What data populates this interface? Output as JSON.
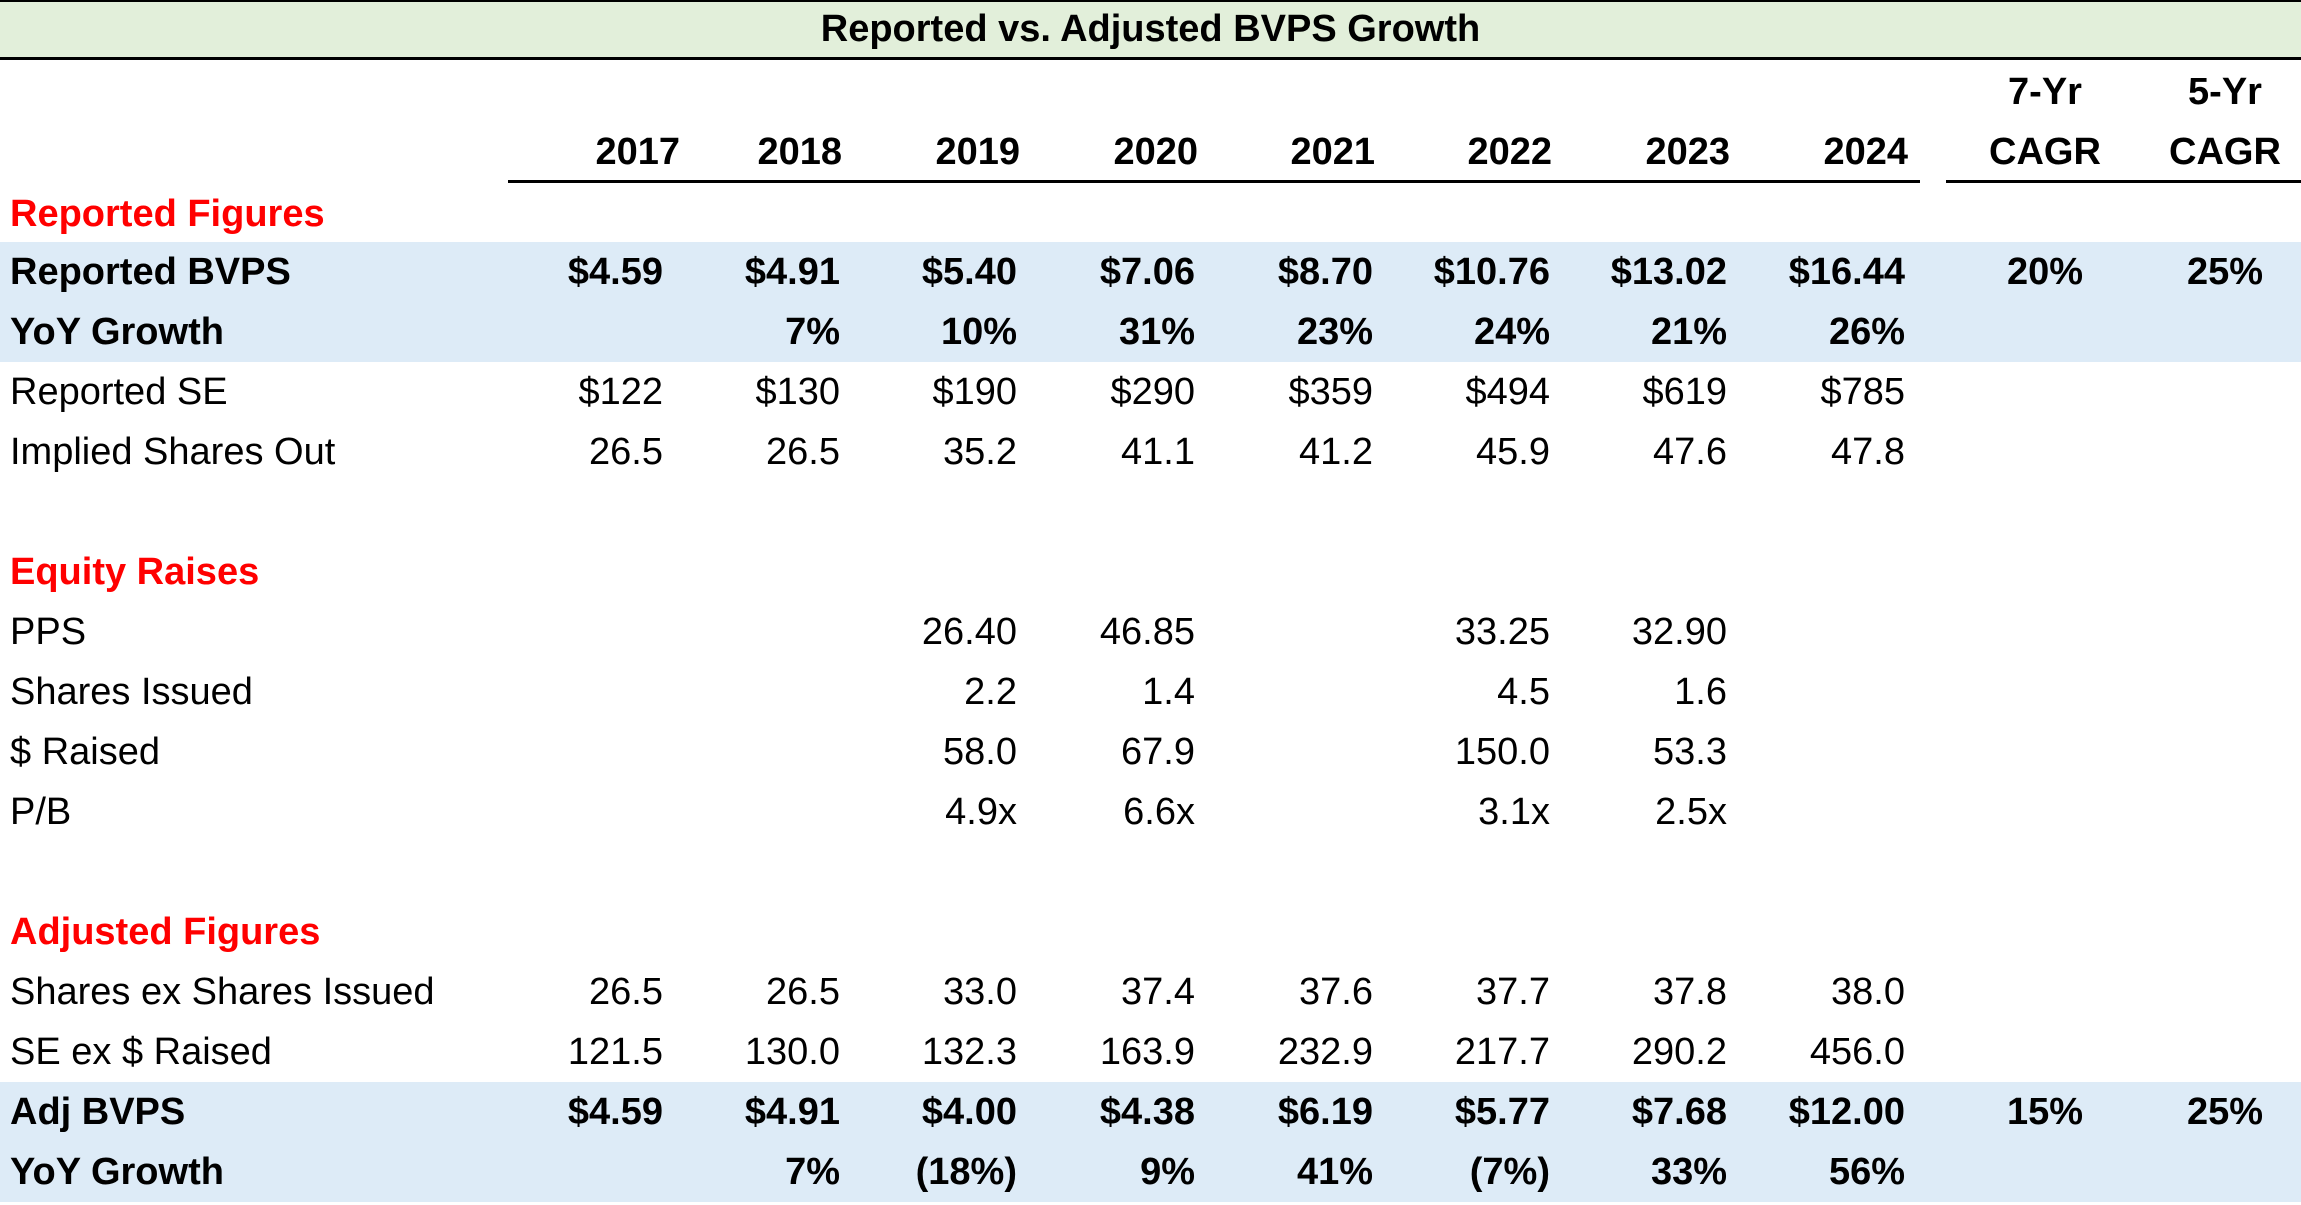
{
  "title": "Reported vs. Adjusted BVPS Growth",
  "headers": {
    "years": [
      "2017",
      "2018",
      "2019",
      "2020",
      "2021",
      "2022",
      "2023",
      "2024"
    ],
    "cagr7": [
      "7-Yr",
      "CAGR"
    ],
    "cagr5": [
      "5-Yr",
      "CAGR"
    ]
  },
  "sections": {
    "reported": "Reported Figures",
    "equity": "Equity Raises",
    "adjusted": "Adjusted Figures"
  },
  "rows": {
    "reported_bvps": {
      "label": "Reported BVPS",
      "values": [
        "$4.59",
        "$4.91",
        "$5.40",
        "$7.06",
        "$8.70",
        "$10.76",
        "$13.02",
        "$16.44"
      ],
      "cagr7": "20%",
      "cagr5": "25%"
    },
    "reported_yoy": {
      "label": "YoY Growth",
      "values": [
        "",
        "7%",
        "10%",
        "31%",
        "23%",
        "24%",
        "21%",
        "26%"
      ]
    },
    "reported_se": {
      "label": "Reported SE",
      "values": [
        "$122",
        "$130",
        "$190",
        "$290",
        "$359",
        "$494",
        "$619",
        "$785"
      ]
    },
    "implied_shares": {
      "label": "Implied Shares Out",
      "values": [
        "26.5",
        "26.5",
        "35.2",
        "41.1",
        "41.2",
        "45.9",
        "47.6",
        "47.8"
      ]
    },
    "pps": {
      "label": "PPS",
      "values": [
        "",
        "",
        "26.40",
        "46.85",
        "",
        "33.25",
        "32.90",
        ""
      ]
    },
    "shares_issued": {
      "label": "Shares Issued",
      "values": [
        "",
        "",
        "2.2",
        "1.4",
        "",
        "4.5",
        "1.6",
        ""
      ]
    },
    "raised": {
      "label": "$ Raised",
      "values": [
        "",
        "",
        "58.0",
        "67.9",
        "",
        "150.0",
        "53.3",
        ""
      ]
    },
    "pb": {
      "label": "P/B",
      "values": [
        "",
        "",
        "4.9x",
        "6.6x",
        "",
        "3.1x",
        "2.5x",
        ""
      ]
    },
    "shares_ex": {
      "label": "Shares ex Shares Issued",
      "values": [
        "26.5",
        "26.5",
        "33.0",
        "37.4",
        "37.6",
        "37.7",
        "37.8",
        "38.0"
      ]
    },
    "se_ex": {
      "label": "SE ex $ Raised",
      "values": [
        "121.5",
        "130.0",
        "132.3",
        "163.9",
        "232.9",
        "217.7",
        "290.2",
        "456.0"
      ]
    },
    "adj_bvps": {
      "label": "Adj BVPS",
      "values": [
        "$4.59",
        "$4.91",
        "$4.00",
        "$4.38",
        "$6.19",
        "$5.77",
        "$7.68",
        "$12.00"
      ],
      "cagr7": "15%",
      "cagr5": "25%"
    },
    "adj_yoy": {
      "label": "YoY Growth",
      "values": [
        "",
        "7%",
        "(18%)",
        "9%",
        "41%",
        "(7%)",
        "33%",
        "56%"
      ]
    }
  },
  "colors": {
    "title_bg": "#e2efda",
    "band_bg": "#ddebf7",
    "section_text": "#ff0000"
  }
}
